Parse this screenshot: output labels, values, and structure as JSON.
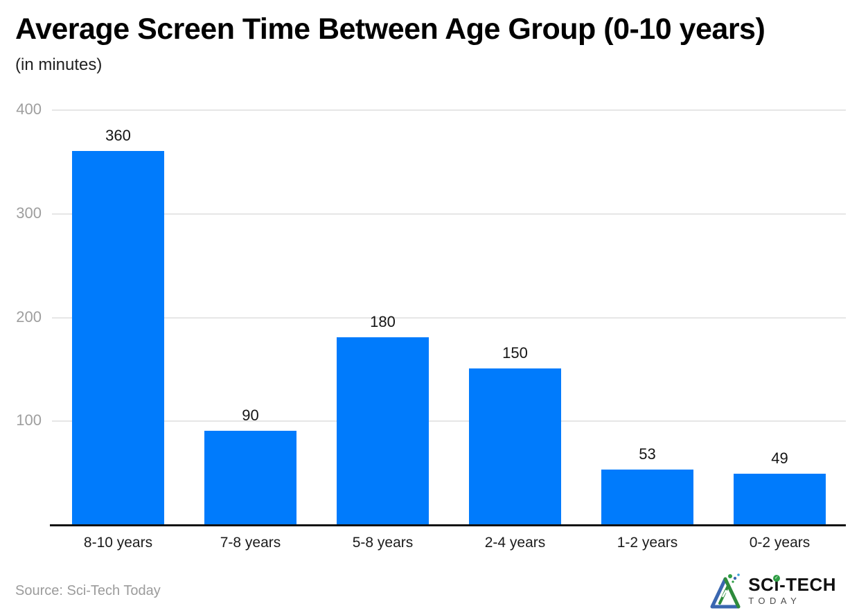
{
  "title": "Average Screen Time Between Age Group (0-10 years)",
  "subtitle": "(in minutes)",
  "source": "Source: Sci-Tech Today",
  "logo": {
    "name_part1": "SC",
    "name_i": "i",
    "name_part2": "-TECH",
    "check": "✓",
    "secondary": "TODAY"
  },
  "colors": {
    "bar": "#007bfc",
    "grid": "#e6e6e6",
    "axis": "#111111",
    "tick_label": "#9e9e9e",
    "value_label": "#141414"
  },
  "chart_data": {
    "type": "bar",
    "title": "Average Screen Time Between Age Group (0-10 years)",
    "subtitle": "(in minutes)",
    "categories": [
      "8-10 years",
      "7-8 years",
      "5-8 years",
      "2-4 years",
      "1-2 years",
      "0-2 years"
    ],
    "values": [
      360,
      90,
      180,
      150,
      53,
      49
    ],
    "xlabel": "",
    "ylabel": "minutes",
    "ylim": [
      0,
      400
    ],
    "y_ticks": [
      400,
      300,
      200,
      100
    ],
    "grid": "horizontal",
    "legend": "none",
    "bar_color": "#007bfc",
    "source": "Sci-Tech Today"
  }
}
